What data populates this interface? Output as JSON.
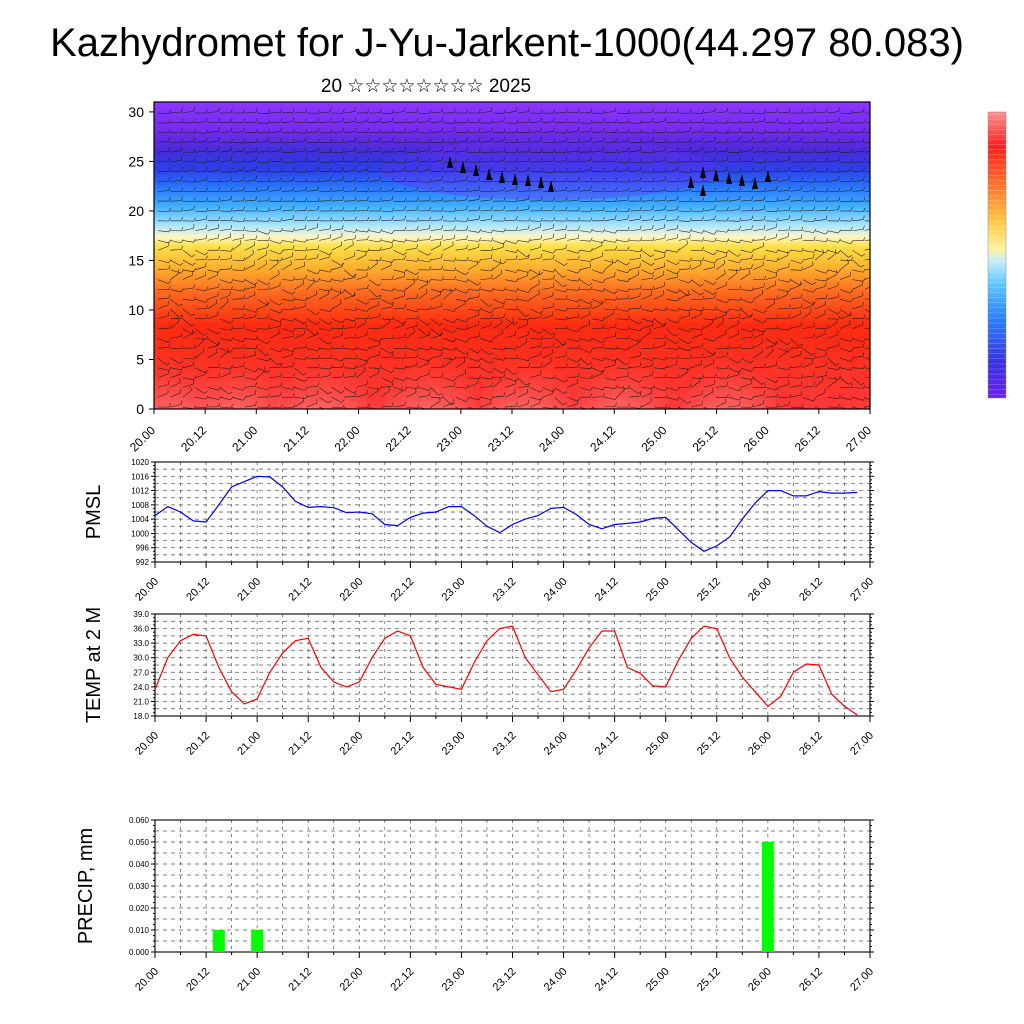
{
  "title": "Kazhydromet for J-Yu-Jarkent-1000(44.297 80.083)",
  "subtitle": "20 ☆☆☆☆☆☆☆☆ 2025",
  "time_labels": [
    "20.00",
    "20.12",
    "21.00",
    "21.12",
    "22.00",
    "22.12",
    "23.00",
    "23.12",
    "24.00",
    "24.12",
    "25.00",
    "25.12",
    "26.00",
    "26.12",
    "27.00"
  ],
  "colors": {
    "pmsl_line": "#0000ff",
    "temp_line": "#ff0000",
    "precip_bar": "#00ff00",
    "grid": "#555555"
  },
  "chart_data": [
    {
      "type": "heatmap",
      "description_levels": "vertical cross-section with wind barbs",
      "x_labels": [
        "20.00",
        "20.12",
        "21.00",
        "21.12",
        "22.00",
        "22.12",
        "23.00",
        "23.12",
        "24.00",
        "24.12",
        "25.00",
        "25.12",
        "26.00",
        "26.12",
        "27.00"
      ],
      "y_ticks": [
        0,
        5,
        10,
        15,
        20,
        25,
        30
      ],
      "ylim": [
        0,
        31
      ],
      "xlim": [
        0,
        168
      ],
      "colorbar": [
        "#ff3030",
        "#ff5a2a",
        "#ff8a2a",
        "#ffb830",
        "#ffe040",
        "#fff0b0",
        "#9be0ff",
        "#40b0ff",
        "#2a70ff",
        "#3a30e0",
        "#6a20f0",
        "#8a30ff"
      ]
    },
    {
      "type": "line",
      "ylabel": "PMSL",
      "ylim": [
        992,
        1020
      ],
      "y_ticks": [
        992,
        996,
        1000,
        1004,
        1008,
        1012,
        1016,
        1020
      ],
      "x_hours": [
        0,
        3,
        6,
        9,
        12,
        15,
        18,
        21,
        24,
        27,
        30,
        33,
        36,
        39,
        42,
        45,
        48,
        51,
        54,
        57,
        60,
        63,
        66,
        69,
        72,
        75,
        78,
        81,
        84,
        87,
        90,
        93,
        96,
        99,
        102,
        105,
        108,
        111,
        114,
        117,
        120,
        123,
        126,
        129,
        132,
        135,
        138,
        141,
        144,
        147,
        150,
        153,
        156,
        159,
        162,
        165
      ],
      "values": [
        1005,
        1007.5,
        1006,
        1003.5,
        1003.2,
        1008,
        1013,
        1014.5,
        1016,
        1015.8,
        1013,
        1009,
        1007.3,
        1007.5,
        1007.2,
        1005.8,
        1006,
        1005.5,
        1002.5,
        1002.2,
        1004.5,
        1005.7,
        1006,
        1007.5,
        1007.5,
        1005,
        1002,
        1000.2,
        1002.5,
        1004,
        1005,
        1007,
        1007.3,
        1005.3,
        1002.5,
        1001.3,
        1002.5,
        1002.8,
        1003.2,
        1004.2,
        1004.5,
        1001,
        997.5,
        995,
        996.5,
        999,
        1004,
        1008.5,
        1012,
        1012,
        1010.5,
        1010.5,
        1011.7,
        1011.3,
        1011.3,
        1011.5
      ]
    },
    {
      "type": "line",
      "ylabel": "TEMP at 2 M",
      "ylim": [
        18,
        39
      ],
      "y_ticks": [
        "18.0",
        "21.0",
        "24.0",
        "27.0",
        "30.0",
        "33.0",
        "36.0",
        "39.0"
      ],
      "x_hours": [
        0,
        3,
        6,
        9,
        12,
        15,
        18,
        21,
        24,
        27,
        30,
        33,
        36,
        39,
        42,
        45,
        48,
        51,
        54,
        57,
        60,
        63,
        66,
        69,
        72,
        75,
        78,
        81,
        84,
        87,
        90,
        93,
        96,
        99,
        102,
        105,
        108,
        111,
        114,
        117,
        120,
        123,
        126,
        129,
        132,
        135,
        138,
        141,
        144,
        147,
        150,
        153,
        156,
        159,
        162,
        165
      ],
      "values": [
        23.5,
        30,
        33.5,
        34.8,
        34.5,
        28,
        23,
        20.5,
        21.5,
        27,
        31,
        33.5,
        34,
        28,
        25,
        24,
        25,
        30,
        34,
        35.5,
        34.5,
        28,
        24.5,
        24,
        23.5,
        29,
        33.5,
        36,
        36.5,
        30,
        26.5,
        23,
        23.5,
        27.5,
        32,
        35.5,
        35.5,
        28,
        26.8,
        24.2,
        24,
        29.5,
        34,
        36.5,
        36,
        30,
        26,
        23,
        20,
        22,
        27,
        28.7,
        28.5,
        22.5,
        20,
        18.2
      ]
    },
    {
      "type": "bar",
      "ylabel": "PRECIP, mm",
      "ylim": [
        0,
        0.06
      ],
      "y_ticks": [
        "0.000",
        "0.010",
        "0.020",
        "0.030",
        "0.040",
        "0.050",
        "0.060"
      ],
      "bars": [
        {
          "hour": 15,
          "value": 0.01
        },
        {
          "hour": 24,
          "value": 0.01
        },
        {
          "hour": 144,
          "value": 0.05
        }
      ]
    }
  ]
}
